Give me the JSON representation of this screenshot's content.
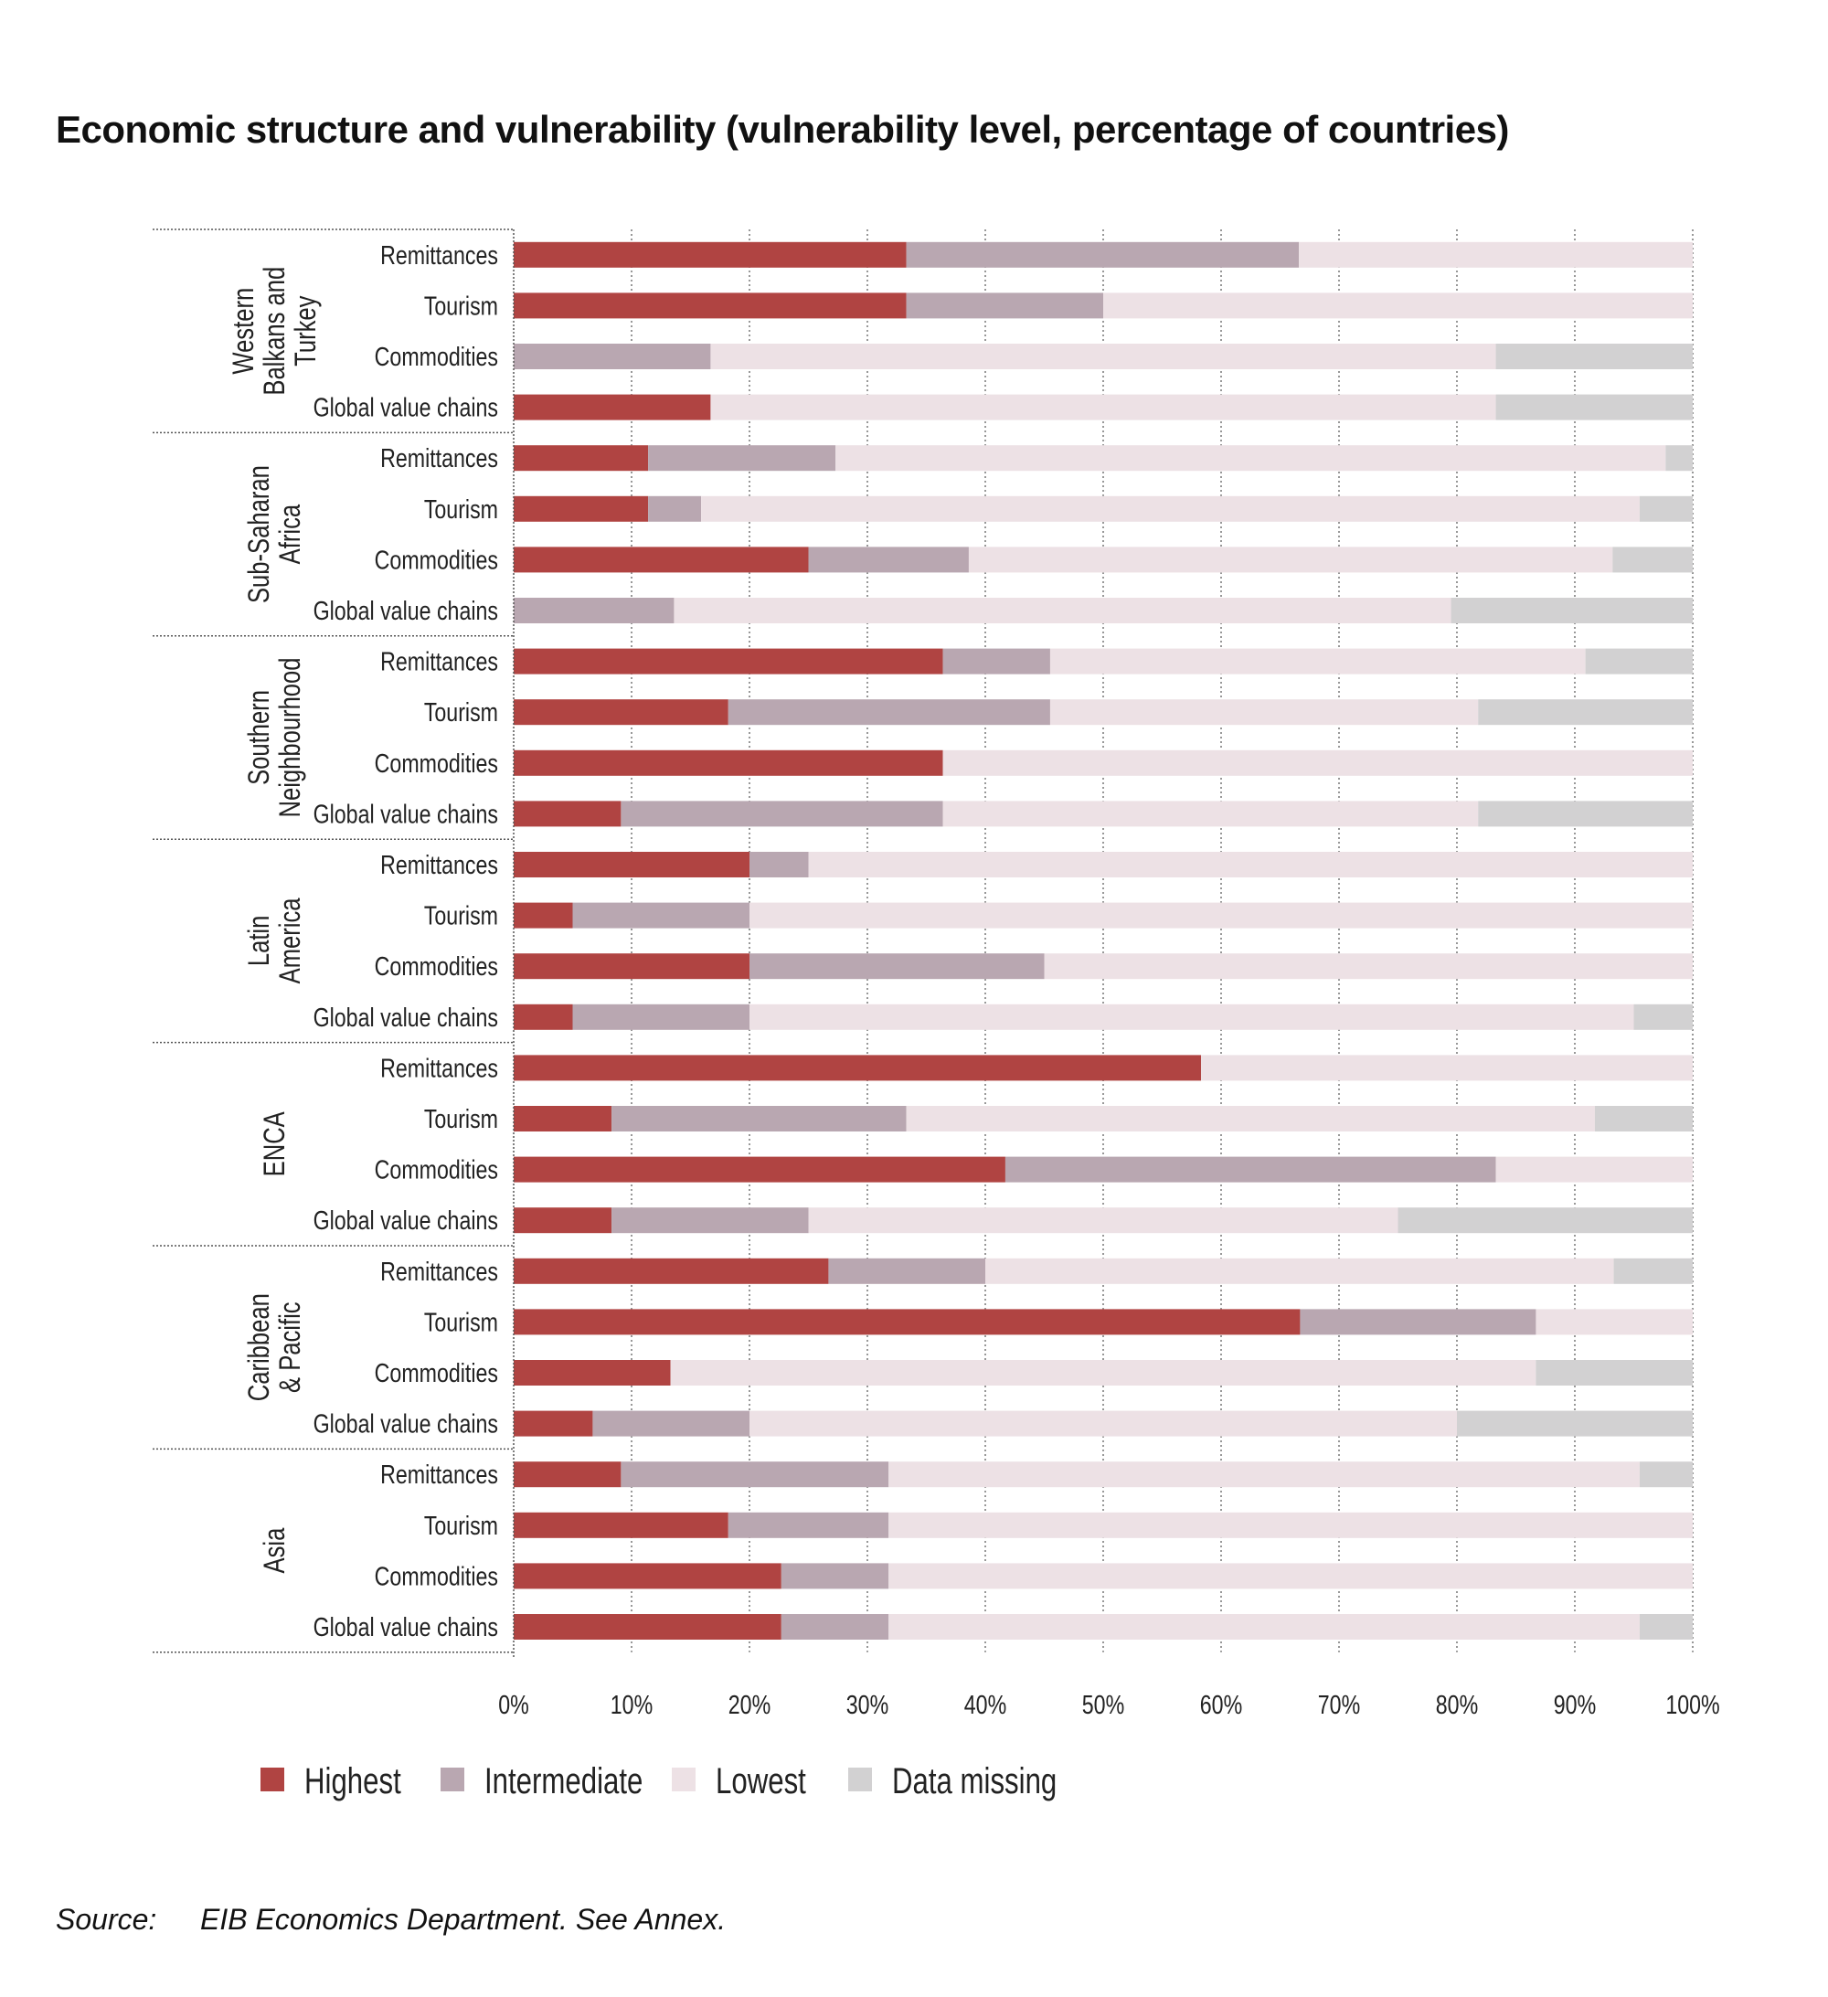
{
  "title": "Economic structure and vulnerability (vulnerability level, percentage of countries)",
  "source_label": "Source:",
  "source_text": "EIB Economics Department. See Annex.",
  "chart_data": {
    "type": "bar",
    "orientation": "horizontal",
    "stacked": true,
    "xlim": [
      0,
      100
    ],
    "x_ticks": [
      "0%",
      "10%",
      "20%",
      "30%",
      "40%",
      "50%",
      "60%",
      "70%",
      "80%",
      "90%",
      "100%"
    ],
    "grid": "vertical dotted",
    "legend_position": "bottom",
    "series_names": [
      "Highest",
      "Intermediate",
      "Lowest",
      "Data missing"
    ],
    "colors": [
      "#b04442",
      "#b9a7b1",
      "#ede1e5",
      "#d2d1d2"
    ],
    "groups": [
      {
        "name": "Western Balkans and Turkey",
        "label_lines": [
          "Western",
          "Balkans and",
          "Turkey"
        ],
        "rows": [
          {
            "category": "Remittances",
            "values": [
              33.3,
              33.3,
              33.4,
              0
            ]
          },
          {
            "category": "Tourism",
            "values": [
              33.3,
              16.7,
              50.0,
              0
            ]
          },
          {
            "category": "Commodities",
            "values": [
              0,
              16.7,
              66.6,
              16.7
            ]
          },
          {
            "category": "Global value chains",
            "values": [
              16.7,
              0,
              66.6,
              16.7
            ]
          }
        ]
      },
      {
        "name": "Sub-Saharan Africa",
        "label_lines": [
          "Sub-Saharan",
          "Africa"
        ],
        "rows": [
          {
            "category": "Remittances",
            "values": [
              11.4,
              15.9,
              70.4,
              2.3
            ]
          },
          {
            "category": "Tourism",
            "values": [
              11.4,
              4.5,
              79.6,
              4.5
            ]
          },
          {
            "category": "Commodities",
            "values": [
              25.0,
              13.6,
              54.6,
              6.8
            ]
          },
          {
            "category": "Global value chains",
            "values": [
              0,
              13.6,
              65.9,
              20.5
            ]
          }
        ]
      },
      {
        "name": "Southern Neighbourhood",
        "label_lines": [
          "Southern",
          "Neighbourhood"
        ],
        "rows": [
          {
            "category": "Remittances",
            "values": [
              36.4,
              9.1,
              45.4,
              9.1
            ]
          },
          {
            "category": "Tourism",
            "values": [
              18.2,
              27.3,
              36.3,
              18.2
            ]
          },
          {
            "category": "Commodities",
            "values": [
              36.4,
              0,
              63.6,
              0
            ]
          },
          {
            "category": "Global value chains",
            "values": [
              9.1,
              27.3,
              45.4,
              18.2
            ]
          }
        ]
      },
      {
        "name": "Latin America",
        "label_lines": [
          "Latin",
          "America"
        ],
        "rows": [
          {
            "category": "Remittances",
            "values": [
              20,
              5,
              75,
              0
            ]
          },
          {
            "category": "Tourism",
            "values": [
              5,
              15,
              80,
              0
            ]
          },
          {
            "category": "Commodities",
            "values": [
              20,
              25,
              55,
              0
            ]
          },
          {
            "category": "Global value chains",
            "values": [
              5,
              15,
              75,
              5
            ]
          }
        ]
      },
      {
        "name": "ENCA",
        "label_lines": [
          "ENCA"
        ],
        "rows": [
          {
            "category": "Remittances",
            "values": [
              58.3,
              0,
              41.7,
              0
            ]
          },
          {
            "category": "Tourism",
            "values": [
              8.3,
              25.0,
              58.4,
              8.3
            ]
          },
          {
            "category": "Commodities",
            "values": [
              41.7,
              41.6,
              16.7,
              0
            ]
          },
          {
            "category": "Global value chains",
            "values": [
              8.3,
              16.7,
              50.0,
              25.0
            ]
          }
        ]
      },
      {
        "name": "Caribbean & Pacific",
        "label_lines": [
          "Caribbean",
          "& Pacific"
        ],
        "rows": [
          {
            "category": "Remittances",
            "values": [
              26.7,
              13.3,
              53.3,
              6.7
            ]
          },
          {
            "category": "Tourism",
            "values": [
              66.7,
              20.0,
              13.3,
              0
            ]
          },
          {
            "category": "Commodities",
            "values": [
              13.3,
              0,
              73.4,
              13.3
            ]
          },
          {
            "category": "Global value chains",
            "values": [
              6.7,
              13.3,
              60.0,
              20.0
            ]
          }
        ]
      },
      {
        "name": "Asia",
        "label_lines": [
          "Asia"
        ],
        "rows": [
          {
            "category": "Remittances",
            "values": [
              9.1,
              22.7,
              63.7,
              4.5
            ]
          },
          {
            "category": "Tourism",
            "values": [
              18.2,
              13.6,
              68.2,
              0
            ]
          },
          {
            "category": "Commodities",
            "values": [
              22.7,
              9.1,
              68.2,
              0
            ]
          },
          {
            "category": "Global value chains",
            "values": [
              22.7,
              9.1,
              63.7,
              4.5
            ]
          }
        ]
      }
    ]
  }
}
